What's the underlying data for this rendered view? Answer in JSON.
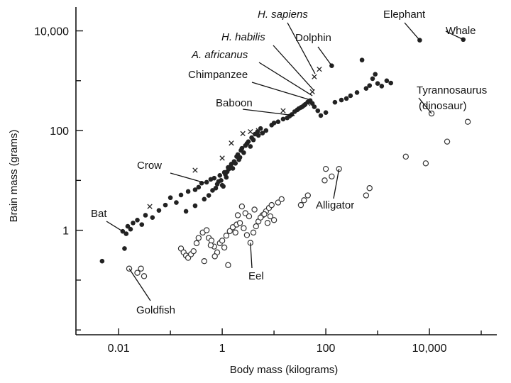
{
  "chart_data": {
    "type": "scatter",
    "title": "",
    "xlabel": "Body mass (kilograms)",
    "ylabel": "Brain mass (grams)",
    "x_scale": "log",
    "y_scale": "log",
    "xlim": [
      0.0015,
      200000
    ],
    "ylim": [
      0.008,
      30000
    ],
    "x_ticks": [
      {
        "value": 0.01,
        "label": "0.01"
      },
      {
        "value": 1,
        "label": "1"
      },
      {
        "value": 100,
        "label": "100"
      },
      {
        "value": 10000,
        "label": "10,000"
      }
    ],
    "y_ticks": [
      {
        "value": 1,
        "label": "1"
      },
      {
        "value": 100,
        "label": "100"
      },
      {
        "value": 10000,
        "label": "10,000"
      }
    ],
    "grid": false,
    "legend": "none",
    "colors": {
      "axis": "#111111",
      "filled": "#222222",
      "open": "#333333"
    },
    "series": [
      {
        "marker": "filled-circle",
        "points": [
          [
            0.0048,
            0.24
          ],
          [
            0.013,
            0.43
          ],
          [
            0.012,
            0.95
          ],
          [
            0.015,
            1.2
          ],
          [
            0.014,
            0.85
          ],
          [
            0.017,
            1.05
          ],
          [
            0.019,
            1.4
          ],
          [
            0.023,
            1.6
          ],
          [
            0.028,
            1.3
          ],
          [
            0.033,
            2.0
          ],
          [
            0.045,
            1.8
          ],
          [
            0.06,
            2.5
          ],
          [
            0.08,
            3.2
          ],
          [
            0.1,
            4.5
          ],
          [
            0.13,
            3.6
          ],
          [
            0.16,
            5.1
          ],
          [
            0.22,
            6.0
          ],
          [
            0.3,
            6.5
          ],
          [
            0.35,
            7.3
          ],
          [
            0.4,
            8.8
          ],
          [
            0.5,
            9.2
          ],
          [
            0.6,
            10.5
          ],
          [
            0.7,
            11.1
          ],
          [
            0.8,
            8.4
          ],
          [
            0.9,
            12.6
          ],
          [
            1.1,
            14.5
          ],
          [
            1.2,
            11.5
          ],
          [
            1.3,
            18.2
          ],
          [
            1.5,
            21.3
          ],
          [
            1.7,
            24.0
          ],
          [
            1.9,
            30.1
          ],
          [
            2.1,
            26.0
          ],
          [
            2.3,
            40.0
          ],
          [
            2.6,
            36.0
          ],
          [
            3.0,
            55.0
          ],
          [
            3.5,
            48.0
          ],
          [
            4.0,
            65.0
          ],
          [
            5.0,
            80.0
          ],
          [
            6.0,
            89.0
          ],
          [
            7.0,
            100.0
          ],
          [
            9.0,
            129.0
          ],
          [
            10.0,
            142.0
          ],
          [
            15.0,
            170.0
          ],
          [
            20.0,
            195.0
          ],
          [
            25.0,
            240.0
          ],
          [
            30.0,
            275.0
          ],
          [
            35.0,
            300.0
          ],
          [
            40.0,
            335.0
          ],
          [
            45.0,
            375.0
          ],
          [
            50.0,
            400.0
          ],
          [
            55.0,
            350.0
          ],
          [
            60.0,
            300.0
          ],
          [
            70.0,
            250.0
          ],
          [
            80.0,
            200.0
          ],
          [
            100.0,
            230.0
          ],
          [
            130.0,
            2000.0
          ],
          [
            150.0,
            370.0
          ],
          [
            200.0,
            410.0
          ],
          [
            250.0,
            440.0
          ],
          [
            300.0,
            500.0
          ],
          [
            400.0,
            580.0
          ],
          [
            500.0,
            2600.0
          ],
          [
            600.0,
            700.0
          ],
          [
            700.0,
            800.0
          ],
          [
            800.0,
            1100.0
          ],
          [
            900.0,
            1350.0
          ],
          [
            1000.0,
            880.0
          ],
          [
            1200.0,
            780.0
          ],
          [
            1500.0,
            1000.0
          ],
          [
            1800.0,
            900.0
          ],
          [
            6500.0,
            6500.0
          ],
          [
            45000.0,
            6700.0
          ],
          [
            0.2,
            2.4
          ],
          [
            0.3,
            3.1
          ],
          [
            0.45,
            4.2
          ],
          [
            0.55,
            5.0
          ],
          [
            0.65,
            6.3
          ],
          [
            0.75,
            7.0
          ],
          [
            0.85,
            9.5
          ],
          [
            0.95,
            10.0
          ],
          [
            1.0,
            8.0
          ],
          [
            1.05,
            7.6
          ],
          [
            1.15,
            13.2
          ],
          [
            1.25,
            15.0
          ],
          [
            1.35,
            17.0
          ],
          [
            1.45,
            19.0
          ],
          [
            1.6,
            17.4
          ],
          [
            1.8,
            22.0
          ],
          [
            2.0,
            33.0
          ],
          [
            2.2,
            29.0
          ],
          [
            2.4,
            44.0
          ],
          [
            2.8,
            50.0
          ],
          [
            3.2,
            60.0
          ],
          [
            3.7,
            72.0
          ],
          [
            4.3,
            85.0
          ],
          [
            4.8,
            95.0
          ],
          [
            5.5,
            110.0
          ],
          [
            12.0,
            150.0
          ],
          [
            18.0,
            180.0
          ],
          [
            22.0,
            210.0
          ],
          [
            28.0,
            260.0
          ],
          [
            33.0,
            290.0
          ],
          [
            38.0,
            320.0
          ],
          [
            48.0,
            380.0
          ]
        ]
      },
      {
        "marker": "cross",
        "points": [
          [
            0.04,
            3.0
          ],
          [
            0.3,
            16.0
          ],
          [
            1.0,
            28.0
          ],
          [
            1.5,
            56.0
          ],
          [
            2.5,
            87.0
          ],
          [
            3.5,
            95.0
          ],
          [
            5.0,
            100.0
          ],
          [
            15.0,
            250.0
          ],
          [
            45.0,
            350.0
          ],
          [
            55.0,
            600.0
          ],
          [
            60.0,
            1200.0
          ],
          [
            75.0,
            1700.0
          ]
        ]
      },
      {
        "marker": "open-circle",
        "points": [
          [
            0.016,
            0.17
          ],
          [
            0.023,
            0.14
          ],
          [
            0.027,
            0.17
          ],
          [
            0.031,
            0.12
          ],
          [
            0.16,
            0.43
          ],
          [
            0.18,
            0.36
          ],
          [
            0.2,
            0.31
          ],
          [
            0.22,
            0.28
          ],
          [
            0.25,
            0.33
          ],
          [
            0.28,
            0.38
          ],
          [
            0.32,
            0.55
          ],
          [
            0.35,
            0.7
          ],
          [
            0.42,
            0.9
          ],
          [
            0.5,
            1.0
          ],
          [
            0.55,
            0.7
          ],
          [
            0.62,
            0.62
          ],
          [
            0.7,
            0.47
          ],
          [
            0.8,
            0.36
          ],
          [
            0.9,
            0.55
          ],
          [
            1.0,
            0.62
          ],
          [
            1.2,
            0.78
          ],
          [
            1.4,
            0.96
          ],
          [
            1.6,
            1.15
          ],
          [
            1.9,
            1.3
          ],
          [
            2.2,
            1.4
          ],
          [
            2.6,
            1.1
          ],
          [
            3.0,
            0.8
          ],
          [
            3.5,
            0.56
          ],
          [
            4.0,
            0.9
          ],
          [
            4.5,
            1.2
          ],
          [
            5.0,
            1.5
          ],
          [
            6.0,
            2.0
          ],
          [
            7.0,
            2.4
          ],
          [
            8.0,
            2.8
          ],
          [
            9.0,
            3.2
          ],
          [
            10.0,
            1.6
          ],
          [
            12.0,
            3.6
          ],
          [
            14.0,
            4.2
          ],
          [
            33.0,
            3.2
          ],
          [
            38.0,
            4.0
          ],
          [
            45.0,
            5.0
          ],
          [
            95.0,
            10.0
          ],
          [
            100.0,
            17.0
          ],
          [
            130.0,
            12.0
          ],
          [
            180.0,
            17.0
          ],
          [
            600.0,
            5.0
          ],
          [
            700.0,
            7.0
          ],
          [
            3500.0,
            30.0
          ],
          [
            8500.0,
            22.0
          ],
          [
            11000.0,
            220.0
          ],
          [
            22000.0,
            60.0
          ],
          [
            55000.0,
            150.0
          ],
          [
            0.45,
            0.24
          ],
          [
            0.6,
            0.5
          ],
          [
            0.72,
            0.3
          ],
          [
            1.1,
            0.45
          ],
          [
            1.3,
            0.2
          ],
          [
            1.8,
            0.9
          ],
          [
            2.0,
            2.0
          ],
          [
            2.4,
            3.0
          ],
          [
            2.8,
            2.2
          ],
          [
            3.3,
            1.9
          ],
          [
            4.2,
            2.6
          ],
          [
            5.5,
            1.8
          ],
          [
            6.5,
            2.1
          ],
          [
            7.5,
            1.4
          ],
          [
            8.5,
            1.9
          ]
        ]
      }
    ],
    "annotations": [
      {
        "text": "H. sapiens",
        "italic": true,
        "target": [
          62.0,
          1380.0
        ]
      },
      {
        "text": "H. habilis",
        "italic": true,
        "target": [
          58.0,
          650.0
        ]
      },
      {
        "text": "A. africanus",
        "italic": true,
        "target": [
          55.0,
          500.0
        ]
      },
      {
        "text": "Chimpanzee",
        "italic": false,
        "target": [
          47.0,
          420.0
        ]
      },
      {
        "text": "Elephant",
        "italic": false,
        "target": [
          6500.0,
          6500.0
        ]
      },
      {
        "text": "Whale",
        "italic": false,
        "target": [
          45000.0,
          6700.0
        ]
      },
      {
        "text": "Dolphin",
        "italic": false,
        "target": [
          130.0,
          2000.0
        ]
      },
      {
        "text": "Tyrannosaurus",
        "italic": false,
        "target": [
          11000.0,
          220.0
        ]
      },
      {
        "text": "(dinosaur)",
        "italic": false,
        "target": null
      },
      {
        "text": "Baboon",
        "italic": false,
        "target": [
          25.0,
          200.0
        ]
      },
      {
        "text": "Crow",
        "italic": false,
        "target": [
          0.45,
          9.0
        ]
      },
      {
        "text": "Bat",
        "italic": false,
        "target": [
          0.012,
          0.95
        ]
      },
      {
        "text": "Alligator",
        "italic": false,
        "target": [
          180.0,
          17.0
        ]
      },
      {
        "text": "Eel",
        "italic": false,
        "target": [
          3.5,
          0.56
        ]
      },
      {
        "text": "Goldfish",
        "italic": false,
        "target": [
          0.016,
          0.17
        ]
      }
    ]
  }
}
